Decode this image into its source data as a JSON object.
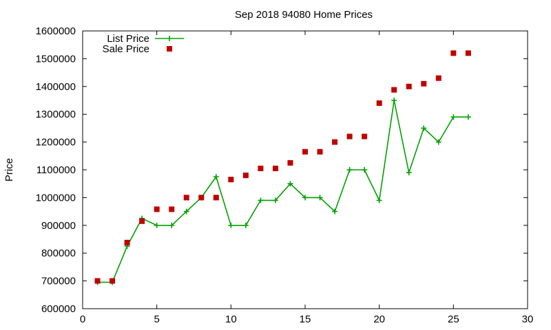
{
  "chart_data": {
    "type": "line",
    "title": "Sep 2018 94080 Home Prices",
    "xlabel": "",
    "ylabel": "Price",
    "xlim": [
      0,
      30
    ],
    "ylim": [
      600000,
      1600000
    ],
    "xticks": [
      0,
      5,
      10,
      15,
      20,
      25,
      30
    ],
    "yticks": [
      600000,
      700000,
      800000,
      900000,
      1000000,
      1100000,
      1200000,
      1300000,
      1400000,
      1500000,
      1600000
    ],
    "xtick_labels": [
      "0",
      "5",
      "10",
      "15",
      "20",
      "25",
      "30"
    ],
    "ytick_labels": [
      "600000",
      "700000",
      "800000",
      "900000",
      "1000000",
      "1100000",
      "1200000",
      "1300000",
      "1400000",
      "1500000",
      "1600000"
    ],
    "grid": false,
    "legend_position": "top-left",
    "x": [
      1,
      2,
      3,
      4,
      5,
      6,
      7,
      8,
      9,
      10,
      11,
      12,
      13,
      14,
      15,
      16,
      17,
      18,
      19,
      20,
      21,
      22,
      23,
      24,
      25,
      26
    ],
    "series": [
      {
        "name": "List Price",
        "style": "line-with-plus-markers",
        "color": "#00a000",
        "values": [
          695000,
          695000,
          825000,
          925000,
          900000,
          900000,
          950000,
          1000000,
          1075000,
          900000,
          900000,
          990000,
          990000,
          1050000,
          1000000,
          1000000,
          950000,
          1100000,
          1100000,
          990000,
          1350000,
          1090000,
          1250000,
          1200000,
          1290000,
          1290000
        ]
      },
      {
        "name": "Sale Price",
        "style": "square-points",
        "color": "#c00000",
        "values": [
          700000,
          700000,
          838000,
          915000,
          958000,
          958000,
          1000000,
          1000000,
          1000000,
          1065000,
          1080000,
          1105000,
          1105000,
          1125000,
          1165000,
          1165000,
          1200000,
          1220000,
          1220000,
          1340000,
          1388000,
          1400000,
          1410000,
          1430000,
          1520000,
          1520000
        ]
      }
    ]
  }
}
